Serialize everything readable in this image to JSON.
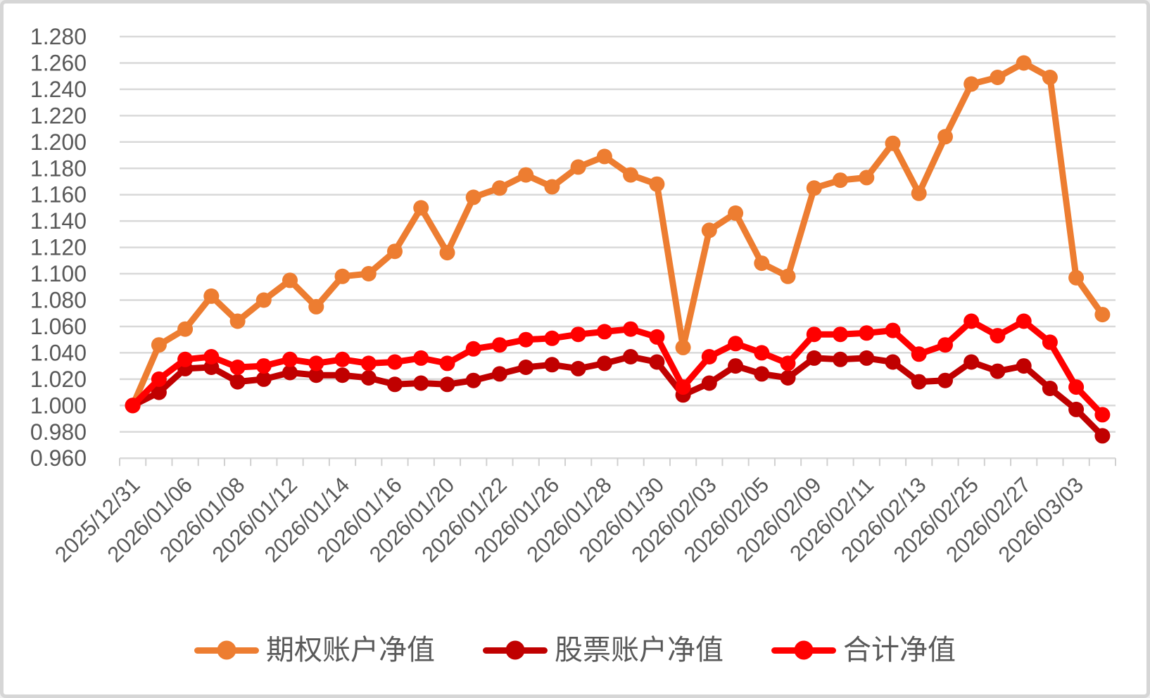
{
  "chart_data": {
    "type": "line",
    "title": "",
    "n_points": 38,
    "x_label_every": 2,
    "x_tick_labels": [
      "2025/12/31",
      "2026/01/06",
      "2026/01/08",
      "2026/01/12",
      "2026/01/14",
      "2026/01/16",
      "2026/01/20",
      "2026/01/22",
      "2026/01/26",
      "2026/01/28",
      "2026/01/30",
      "2026/02/03",
      "2026/02/05",
      "2026/02/09",
      "2026/02/11",
      "2026/02/13",
      "2026/02/25",
      "2026/02/27",
      "2026/03/03"
    ],
    "y_axis": {
      "min": 0.96,
      "max": 1.28,
      "step": 0.02,
      "decimals": 3
    },
    "grid": "horizontal",
    "legend_position": "bottom",
    "series": [
      {
        "name": "期权账户净值",
        "color": "#ED7D31",
        "values": [
          1.0,
          1.046,
          1.058,
          1.083,
          1.064,
          1.08,
          1.095,
          1.075,
          1.098,
          1.1,
          1.117,
          1.15,
          1.116,
          1.158,
          1.165,
          1.175,
          1.166,
          1.181,
          1.189,
          1.175,
          1.168,
          1.044,
          1.133,
          1.146,
          1.108,
          1.098,
          1.165,
          1.171,
          1.173,
          1.199,
          1.161,
          1.204,
          1.244,
          1.249,
          1.26,
          1.249,
          1.097,
          1.069
        ]
      },
      {
        "name": "股票账户净值",
        "color": "#C00000",
        "values": [
          1.0,
          1.01,
          1.028,
          1.029,
          1.018,
          1.02,
          1.025,
          1.023,
          1.023,
          1.021,
          1.016,
          1.017,
          1.016,
          1.019,
          1.024,
          1.029,
          1.031,
          1.028,
          1.032,
          1.037,
          1.033,
          1.008,
          1.017,
          1.03,
          1.024,
          1.021,
          1.036,
          1.035,
          1.036,
          1.033,
          1.018,
          1.019,
          1.033,
          1.026,
          1.03,
          1.013,
          0.997,
          0.977
        ]
      },
      {
        "name": "合计净值",
        "color": "#FF0000",
        "values": [
          1.0,
          1.02,
          1.035,
          1.037,
          1.029,
          1.03,
          1.035,
          1.032,
          1.035,
          1.032,
          1.033,
          1.036,
          1.032,
          1.043,
          1.046,
          1.05,
          1.051,
          1.054,
          1.056,
          1.058,
          1.052,
          1.014,
          1.037,
          1.047,
          1.04,
          1.032,
          1.054,
          1.054,
          1.055,
          1.057,
          1.039,
          1.046,
          1.064,
          1.053,
          1.064,
          1.048,
          1.014,
          0.993
        ]
      }
    ],
    "colors": {
      "gridline": "#D9D9D9",
      "axis": "#D9D9D9",
      "tick": "#D0D0D0",
      "text": "#595959",
      "background": "#FFFFFF",
      "border": "#D6D6D6"
    }
  }
}
